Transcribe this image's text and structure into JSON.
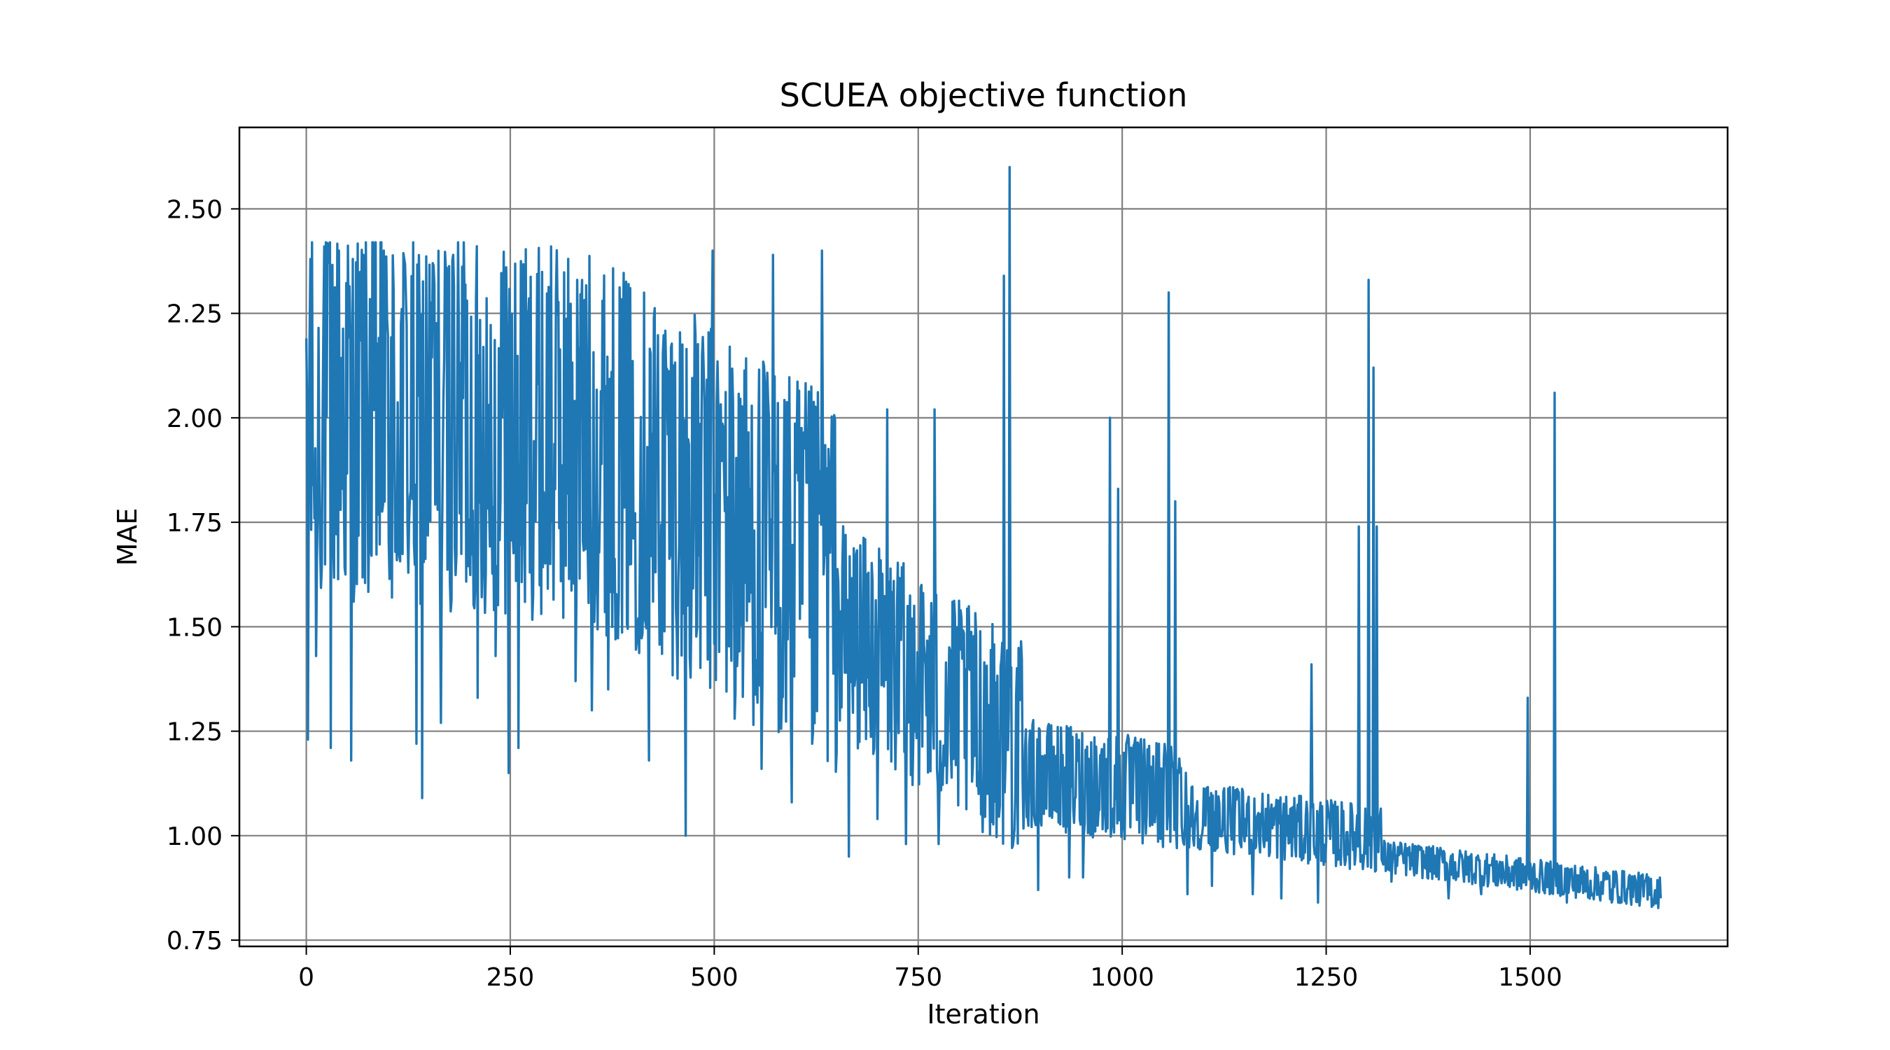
{
  "chart_data": {
    "type": "line",
    "title": "SCUEA objective function",
    "xlabel": "Iteration",
    "ylabel": "MAE",
    "xlim": [
      -82,
      1742
    ],
    "ylim": [
      0.735,
      2.695
    ],
    "grid": true,
    "color": "#1f77b4",
    "xticks": [
      0,
      250,
      500,
      750,
      1000,
      1250,
      1500
    ],
    "xtick_labels": [
      "0",
      "250",
      "500",
      "750",
      "1000",
      "1250",
      "1500"
    ],
    "yticks": [
      0.75,
      1.0,
      1.25,
      1.5,
      1.75,
      2.0,
      2.25,
      2.5
    ],
    "ytick_labels": [
      "0.75",
      "1.00",
      "1.25",
      "1.50",
      "1.75",
      "2.00",
      "2.25",
      "2.50"
    ],
    "n_iterations": 1661,
    "series": [
      {
        "anchors": [
          [
            0,
            2.19
          ],
          [
            2,
            1.23
          ],
          [
            5,
            2.38
          ],
          [
            12,
            1.43
          ],
          [
            22,
            2.41
          ],
          [
            30,
            1.21
          ],
          [
            40,
            2.4
          ],
          [
            55,
            1.18
          ],
          [
            70,
            2.39
          ],
          [
            80,
            1.67
          ],
          [
            95,
            2.4
          ],
          [
            105,
            1.57
          ],
          [
            120,
            2.38
          ],
          [
            135,
            1.22
          ],
          [
            142,
            1.09
          ],
          [
            155,
            2.37
          ],
          [
            165,
            1.27
          ],
          [
            180,
            2.39
          ],
          [
            193,
            2.42
          ],
          [
            210,
            1.33
          ],
          [
            232,
            1.43
          ],
          [
            245,
            2.36
          ],
          [
            248,
            1.15
          ],
          [
            260,
            1.21
          ],
          [
            300,
            2.41
          ],
          [
            330,
            1.37
          ],
          [
            350,
            1.3
          ],
          [
            370,
            1.35
          ],
          [
            395,
            2.32
          ],
          [
            420,
            1.18
          ],
          [
            415,
            1.52
          ],
          [
            465,
            1.0
          ],
          [
            498,
            2.4
          ],
          [
            525,
            1.28
          ],
          [
            558,
            1.16
          ],
          [
            572,
            2.39
          ],
          [
            595,
            1.08
          ],
          [
            632,
            2.4
          ],
          [
            620,
            1.22
          ],
          [
            650,
            1.2
          ],
          [
            665,
            0.95
          ],
          [
            690,
            1.31
          ],
          [
            700,
            1.04
          ],
          [
            712,
            2.02
          ],
          [
            735,
            0.98
          ],
          [
            745,
            1.55
          ],
          [
            775,
            0.98
          ],
          [
            770,
            2.02
          ],
          [
            855,
            2.34
          ],
          [
            862,
            2.6
          ],
          [
            880,
            1.1
          ],
          [
            897,
            0.87
          ],
          [
            935,
            0.9
          ],
          [
            952,
            0.9
          ],
          [
            985,
            2.0
          ],
          [
            995,
            1.83
          ],
          [
            1038,
            1.19
          ],
          [
            1057,
            2.3
          ],
          [
            1065,
            1.8
          ],
          [
            1080,
            0.86
          ],
          [
            1110,
            0.88
          ],
          [
            1160,
            0.86
          ],
          [
            1195,
            0.85
          ],
          [
            1232,
            1.41
          ],
          [
            1240,
            0.84
          ],
          [
            1290,
            1.74
          ],
          [
            1302,
            2.33
          ],
          [
            1308,
            2.12
          ],
          [
            1312,
            1.74
          ],
          [
            1330,
            0.89
          ],
          [
            1400,
            0.85
          ],
          [
            1440,
            0.86
          ],
          [
            1497,
            1.33
          ],
          [
            1530,
            2.06
          ],
          [
            1545,
            0.84
          ],
          [
            1600,
            0.84
          ],
          [
            1660,
            0.85
          ]
        ]
      }
    ]
  }
}
